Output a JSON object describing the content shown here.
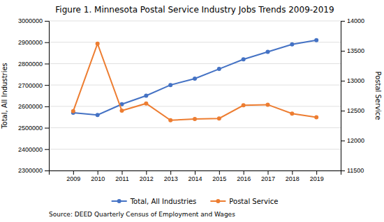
{
  "chart_data": {
    "type": "line",
    "title": "Figure 1. Minnesota Postal Service Industry Jobs Trends 2009-2019",
    "x": [
      2009,
      2010,
      2011,
      2012,
      2013,
      2014,
      2015,
      2016,
      2017,
      2018,
      2019
    ],
    "xlim": [
      2008,
      2020
    ],
    "xticks": [
      2009,
      2010,
      2011,
      2012,
      2013,
      2014,
      2015,
      2016,
      2017,
      2018,
      2019
    ],
    "y_label": "Total, All Industries",
    "y2_label": "Postal Service",
    "ylim": [
      2300000,
      3000000
    ],
    "yticks": [
      2300000,
      2400000,
      2500000,
      2600000,
      2700000,
      2800000,
      2900000,
      3000000
    ],
    "y2lim": [
      11500,
      14000
    ],
    "y2ticks": [
      11500,
      12000,
      12500,
      13000,
      13500,
      14000
    ],
    "grid": true,
    "legend": "bottom",
    "annotations": [
      "Source: DEED Quarterly Census of Employment and Wages"
    ],
    "series": [
      {
        "name": "Total, All Industries",
        "color": "#4472C4",
        "marker": "circle",
        "line_style": "solid",
        "axis": "y",
        "values": [
          2570000,
          2560000,
          2610000,
          2650000,
          2700000,
          2730000,
          2775000,
          2820000,
          2855000,
          2890000,
          2910000
        ]
      },
      {
        "name": "Postal Service",
        "color": "#ED7D31",
        "marker": "circle",
        "line_style": "solid",
        "axis": "y2",
        "values": [
          12490,
          13620,
          12500,
          12620,
          12340,
          12360,
          12370,
          12590,
          12600,
          12450,
          12390
        ]
      }
    ]
  }
}
